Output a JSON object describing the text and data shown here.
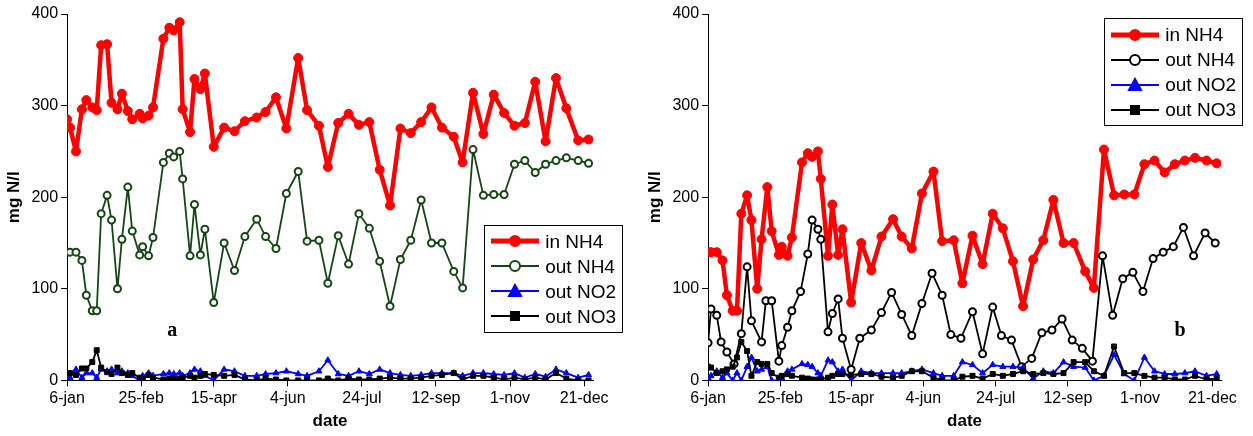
{
  "chart_data": [
    {
      "type": "line",
      "xlabel": "date",
      "ylabel": "mg N/l",
      "legend": "right",
      "annotations": [
        "a"
      ],
      "xlim": [
        "--01-06",
        "--12-27"
      ],
      "ylim": [
        0,
        400
      ],
      "yticks": [
        0,
        100,
        200,
        300,
        400
      ],
      "xticks": [
        {
          "value": "--01-06",
          "label": "6-jan"
        },
        {
          "value": "--02-25",
          "label": "25-feb"
        },
        {
          "value": "--04-15",
          "label": "15-apr"
        },
        {
          "value": "--06-04",
          "label": "4-jun"
        },
        {
          "value": "--07-24",
          "label": "24-jul"
        },
        {
          "value": "--09-12",
          "label": "12-sep"
        },
        {
          "value": "--11-01",
          "label": "1-nov"
        },
        {
          "value": "--12-21",
          "label": "21-dec"
        }
      ],
      "x": [
        "--01-06",
        "--01-08",
        "--01-12",
        "--01-16",
        "--01-19",
        "--01-23",
        "--01-26",
        "--01-29",
        "--02-02",
        "--02-05",
        "--02-09",
        "--02-12",
        "--02-16",
        "--02-19",
        "--02-24",
        "--02-26",
        "--03-02",
        "--03-05",
        "--03-12",
        "--03-16",
        "--03-19",
        "--03-23",
        "--03-25",
        "--03-30",
        "--04-02",
        "--04-06",
        "--04-09",
        "--04-15",
        "--04-22",
        "--04-29",
        "--05-06",
        "--05-14",
        "--05-20",
        "--05-27",
        "--06-03",
        "--06-11",
        "--06-17",
        "--06-25",
        "--07-01",
        "--07-08",
        "--07-15",
        "--07-22",
        "--07-29",
        "--08-05",
        "--08-12",
        "--08-19",
        "--08-26",
        "--09-02",
        "--09-09",
        "--09-16",
        "--09-24",
        "--09-30",
        "--10-07",
        "--10-14",
        "--10-21",
        "--10-28",
        "--11-04",
        "--11-11",
        "--11-18",
        "--11-25",
        "--12-02",
        "--12-09",
        "--12-17",
        "--12-24"
      ],
      "series": [
        {
          "name": "in NH4",
          "color": "#ff0000",
          "marker": "circle",
          "values": [
            285,
            276,
            250,
            296,
            306,
            298,
            295,
            366,
            367,
            303,
            296,
            313,
            294,
            285,
            291,
            286,
            289,
            298,
            373,
            385,
            382,
            391,
            296,
            271,
            329,
            318,
            335,
            255,
            276,
            272,
            283,
            287,
            293,
            309,
            275,
            352,
            295,
            278,
            233,
            281,
            291,
            279,
            282,
            230,
            191,
            275,
            270,
            282,
            298,
            276,
            266,
            238,
            314,
            269,
            312,
            292,
            278,
            281,
            326,
            261,
            330,
            297,
            262,
            263
          ]
        },
        {
          "name": "out NH4",
          "color": "#154515",
          "marker": "circle",
          "values": [
            140,
            140,
            140,
            131,
            93,
            76,
            76,
            182,
            202,
            175,
            100,
            154,
            211,
            163,
            137,
            146,
            136,
            156,
            238,
            248,
            244,
            250,
            220,
            136,
            192,
            137,
            165,
            85,
            150,
            120,
            157,
            176,
            157,
            144,
            204,
            228,
            152,
            153,
            106,
            158,
            127,
            182,
            166,
            130,
            81,
            132,
            153,
            197,
            150,
            150,
            119,
            101,
            252,
            202,
            203,
            203,
            236,
            240,
            227,
            236,
            240,
            243,
            240,
            237
          ]
        },
        {
          "name": "out NO2",
          "color": "#0000ff",
          "marker": "triangle",
          "values": [
            3,
            3,
            12,
            3,
            8,
            8,
            3,
            12,
            10,
            12,
            8,
            10,
            8,
            5,
            0,
            5,
            8,
            5,
            7,
            8,
            7,
            8,
            5,
            8,
            12,
            10,
            5,
            0,
            12,
            10,
            5,
            5,
            7,
            8,
            10,
            7,
            5,
            10,
            22,
            7,
            5,
            10,
            7,
            12,
            8,
            6,
            5,
            6,
            8,
            8,
            8,
            5,
            8,
            8,
            7,
            6,
            8,
            3,
            7,
            4,
            12,
            8,
            3,
            6
          ]
        },
        {
          "name": "out NO3",
          "color": "#000000",
          "marker": "square",
          "values": [
            8,
            8,
            6,
            13,
            13,
            20,
            33,
            14,
            9,
            7,
            14,
            8,
            6,
            8,
            3,
            1,
            6,
            3,
            1,
            2,
            2,
            2,
            3,
            5,
            3,
            5,
            7,
            6,
            5,
            6,
            1,
            0,
            2,
            1,
            0,
            0,
            0,
            0,
            2,
            0,
            2,
            1,
            1,
            2,
            3,
            2,
            2,
            3,
            5,
            6,
            8,
            1,
            5,
            5,
            3,
            1,
            3,
            1,
            3,
            1,
            8,
            2,
            0,
            0
          ]
        }
      ]
    },
    {
      "type": "line",
      "xlabel": "date",
      "ylabel": "mg N/l",
      "legend": "top right",
      "annotations": [
        "b"
      ],
      "xlim": [
        "--01-06",
        "--12-27"
      ],
      "ylim": [
        0,
        400
      ],
      "yticks": [
        0,
        100,
        200,
        300,
        400
      ],
      "xticks": [
        {
          "value": "--01-06",
          "label": "6-jan"
        },
        {
          "value": "--02-25",
          "label": "25-feb"
        },
        {
          "value": "--04-15",
          "label": "15-apr"
        },
        {
          "value": "--06-04",
          "label": "4-jun"
        },
        {
          "value": "--07-24",
          "label": "24-jul"
        },
        {
          "value": "--09-12",
          "label": "12-sep"
        },
        {
          "value": "--11-01",
          "label": "1-nov"
        },
        {
          "value": "--12-21",
          "label": "21-dec"
        }
      ],
      "x": [
        "--01-06",
        "--01-08",
        "--01-12",
        "--01-16",
        "--01-19",
        "--01-23",
        "--01-26",
        "--01-29",
        "--02-02",
        "--02-05",
        "--02-09",
        "--02-12",
        "--02-16",
        "--02-19",
        "--02-24",
        "--02-26",
        "--03-02",
        "--03-05",
        "--03-12",
        "--03-16",
        "--03-19",
        "--03-23",
        "--03-25",
        "--03-30",
        "--04-02",
        "--04-06",
        "--04-09",
        "--04-15",
        "--04-22",
        "--04-29",
        "--05-06",
        "--05-14",
        "--05-20",
        "--05-27",
        "--06-03",
        "--06-11",
        "--06-17",
        "--06-25",
        "--07-01",
        "--07-08",
        "--07-15",
        "--07-22",
        "--07-29",
        "--08-05",
        "--08-12",
        "--08-19",
        "--08-26",
        "--09-02",
        "--09-09",
        "--09-16",
        "--09-24",
        "--09-30",
        "--10-07",
        "--10-14",
        "--10-21",
        "--10-28",
        "--11-04",
        "--11-11",
        "--11-18",
        "--11-25",
        "--12-02",
        "--12-09",
        "--12-17",
        "--12-24"
      ],
      "series": [
        {
          "name": "in NH4",
          "color": "#ff0000",
          "marker": "circle",
          "values": [
            140,
            140,
            140,
            131,
            93,
            76,
            76,
            182,
            202,
            175,
            100,
            154,
            211,
            163,
            137,
            146,
            136,
            156,
            238,
            248,
            244,
            250,
            220,
            136,
            192,
            137,
            165,
            85,
            150,
            120,
            157,
            176,
            157,
            144,
            204,
            228,
            152,
            153,
            106,
            158,
            127,
            182,
            166,
            130,
            81,
            132,
            153,
            197,
            150,
            150,
            119,
            101,
            252,
            202,
            203,
            203,
            236,
            240,
            227,
            236,
            240,
            243,
            240,
            237
          ]
        },
        {
          "name": "out NH4",
          "color": "#000000",
          "marker": "circle",
          "x": [
            "--01-06",
            "--01-08",
            "--01-12",
            "--01-15",
            "--01-19",
            "--01-24",
            "--01-29",
            "--02-02",
            "--02-05",
            "--02-12",
            "--02-15",
            "--02-19",
            "--02-24",
            "--02-26",
            "--03-02",
            "--03-05",
            "--03-11",
            "--03-16",
            "--03-19",
            "--03-23",
            "--03-25",
            "--03-30",
            "--04-02",
            "--04-06",
            "--04-09",
            "--04-15",
            "--04-21",
            "--04-29",
            "--05-06",
            "--05-13",
            "--05-20",
            "--05-27",
            "--06-03",
            "--06-10",
            "--06-17",
            "--06-23",
            "--06-30",
            "--07-08",
            "--07-15",
            "--07-22",
            "--07-28",
            "--08-04",
            "--08-11",
            "--08-18",
            "--08-25",
            "--09-01",
            "--09-08",
            "--09-15",
            "--09-22",
            "--09-29",
            "--10-06",
            "--10-13",
            "--10-20",
            "--10-27",
            "--11-03",
            "--11-10",
            "--11-17",
            "--11-24",
            "--12-01",
            "--12-08",
            "--12-16",
            "--12-23"
          ],
          "values": [
            41,
            78,
            71,
            42,
            31,
            18,
            51,
            124,
            65,
            42,
            87,
            87,
            21,
            38,
            58,
            76,
            97,
            138,
            175,
            165,
            154,
            53,
            73,
            89,
            46,
            12,
            46,
            55,
            74,
            96,
            72,
            49,
            84,
            117,
            93,
            50,
            46,
            75,
            29,
            80,
            49,
            44,
            15,
            24,
            52,
            55,
            67,
            44,
            35,
            21,
            136,
            71,
            111,
            118,
            97,
            133,
            140,
            146,
            167,
            136,
            161,
            150
          ]
        },
        {
          "name": "out NO2",
          "color": "#0000ff",
          "marker": "triangle",
          "values": [
            3,
            5,
            10,
            3,
            8,
            0,
            8,
            0,
            15,
            25,
            10,
            12,
            15,
            0,
            0,
            2,
            10,
            12,
            18,
            17,
            15,
            8,
            5,
            22,
            20,
            10,
            12,
            0,
            10,
            8,
            8,
            8,
            8,
            10,
            12,
            8,
            5,
            5,
            20,
            17,
            8,
            17,
            15,
            15,
            14,
            2,
            10,
            8,
            20,
            15,
            14,
            0,
            5,
            28,
            7,
            0,
            25,
            10,
            7,
            7,
            8,
            10,
            5,
            7
          ]
        },
        {
          "name": "out NO3",
          "color": "#000000",
          "marker": "square",
          "values": [
            15,
            14,
            8,
            10,
            12,
            15,
            25,
            42,
            32,
            5,
            20,
            18,
            18,
            8,
            3,
            5,
            7,
            5,
            3,
            2,
            1,
            1,
            1,
            3,
            5,
            7,
            7,
            6,
            7,
            7,
            4,
            3,
            5,
            10,
            10,
            3,
            0,
            0,
            4,
            5,
            2,
            7,
            5,
            7,
            10,
            7,
            8,
            7,
            8,
            20,
            20,
            10,
            5,
            37,
            8,
            8,
            5,
            3,
            3,
            1,
            1,
            5,
            1,
            2
          ]
        }
      ]
    }
  ]
}
